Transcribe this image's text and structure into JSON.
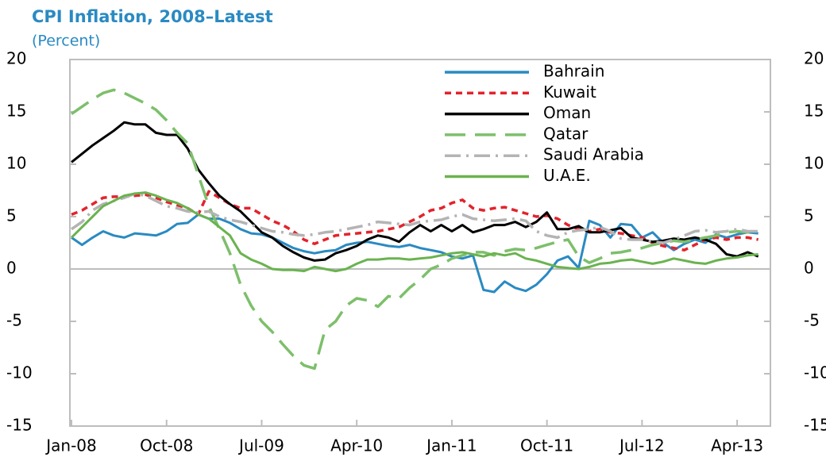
{
  "chart_data": {
    "type": "line",
    "title": "CPI Inflation, 2008–Latest",
    "subtitle": "(Percent)",
    "categories": [
      "Jan-08",
      null,
      null,
      null,
      null,
      null,
      null,
      null,
      null,
      "Oct-08",
      null,
      null,
      null,
      null,
      null,
      null,
      null,
      null,
      "Jul-09",
      null,
      null,
      null,
      null,
      null,
      null,
      null,
      null,
      "Apr-10",
      null,
      null,
      null,
      null,
      null,
      null,
      null,
      null,
      "Jan-11",
      null,
      null,
      null,
      null,
      null,
      null,
      null,
      null,
      "Oct-11",
      null,
      null,
      null,
      null,
      null,
      null,
      null,
      null,
      "Jul-12",
      null,
      null,
      null,
      null,
      null,
      null,
      null,
      null,
      "Apr-13",
      null,
      null
    ],
    "ylim": [
      -15,
      20
    ],
    "yticks": [
      -15,
      -10,
      -5,
      0,
      5,
      10,
      15,
      20
    ],
    "y2lim": [
      -15,
      20
    ],
    "y2ticks": [
      -15,
      -10,
      -5,
      0,
      5,
      10,
      15,
      20
    ],
    "grid": false,
    "legend": "top-right",
    "series": [
      {
        "name": "Bahrain",
        "color": "#2a8ac2",
        "dash": "solid",
        "values": [
          3.0,
          2.3,
          3.0,
          3.6,
          3.2,
          3.0,
          3.4,
          3.3,
          3.2,
          3.6,
          4.3,
          4.4,
          5.2,
          4.8,
          4.8,
          4.4,
          3.8,
          3.4,
          3.3,
          3.0,
          2.5,
          2.0,
          1.7,
          1.5,
          1.7,
          1.8,
          2.3,
          2.5,
          2.6,
          2.4,
          2.2,
          2.1,
          2.3,
          2.0,
          1.8,
          1.6,
          1.2,
          1.0,
          1.3,
          -2.0,
          -2.2,
          -1.2,
          -1.8,
          -2.1,
          -1.5,
          -0.5,
          0.8,
          1.2,
          0.1,
          4.6,
          4.2,
          3.0,
          4.3,
          4.2,
          3.0,
          3.5,
          2.5,
          1.8,
          2.4,
          2.8,
          2.5,
          3.3,
          3.0,
          3.3,
          3.5,
          3.4
        ]
      },
      {
        "name": "Kuwait",
        "color": "#e3232c",
        "dash": "dashed",
        "values": [
          5.2,
          5.6,
          6.2,
          6.8,
          6.9,
          6.9,
          7.0,
          7.1,
          6.8,
          6.4,
          6.1,
          5.8,
          5.2,
          7.4,
          6.8,
          6.2,
          5.8,
          5.8,
          5.2,
          4.6,
          4.2,
          3.6,
          2.8,
          2.4,
          2.8,
          3.2,
          3.3,
          3.4,
          3.5,
          3.6,
          3.8,
          4.0,
          4.5,
          5.0,
          5.6,
          5.8,
          6.3,
          6.6,
          5.8,
          5.6,
          5.8,
          5.9,
          5.6,
          5.3,
          5.0,
          5.1,
          4.8,
          4.2,
          3.8,
          3.6,
          3.8,
          3.5,
          3.4,
          3.2,
          3.0,
          2.5,
          2.2,
          2.0,
          1.8,
          2.3,
          2.8,
          3.0,
          2.8,
          3.0,
          3.0,
          2.8
        ]
      },
      {
        "name": "Oman",
        "color": "#000000",
        "dash": "solid",
        "values": [
          10.2,
          11.0,
          11.8,
          12.5,
          13.2,
          14.0,
          13.8,
          13.8,
          13.0,
          12.8,
          12.8,
          11.5,
          9.5,
          8.2,
          7.0,
          6.2,
          5.5,
          4.5,
          3.5,
          3.0,
          2.2,
          1.6,
          1.1,
          0.8,
          0.9,
          1.5,
          1.8,
          2.2,
          2.8,
          3.2,
          3.0,
          2.6,
          3.5,
          4.2,
          3.6,
          4.2,
          3.6,
          4.2,
          3.5,
          3.8,
          4.2,
          4.2,
          4.5,
          4.0,
          4.5,
          5.4,
          3.8,
          3.8,
          4.1,
          3.5,
          3.5,
          3.7,
          3.9,
          3.0,
          2.8,
          2.6,
          2.7,
          2.9,
          2.8,
          3.0,
          2.8,
          2.4,
          1.4,
          1.2,
          1.6,
          1.2
        ]
      },
      {
        "name": "Qatar",
        "color": "#7dbf6b",
        "dash": "long-dash",
        "values": [
          14.8,
          15.5,
          16.2,
          16.8,
          17.1,
          16.8,
          16.3,
          15.8,
          15.2,
          14.2,
          13.0,
          12.0,
          9.0,
          6.0,
          3.8,
          1.5,
          -1.5,
          -3.5,
          -5.0,
          -6.0,
          -7.2,
          -8.3,
          -9.2,
          -9.5,
          -5.8,
          -5.0,
          -3.5,
          -2.8,
          -3.0,
          -3.6,
          -2.6,
          -2.8,
          -1.8,
          -1.0,
          0.0,
          0.4,
          1.0,
          1.3,
          1.6,
          1.6,
          1.3,
          1.7,
          1.9,
          1.8,
          2.0,
          2.3,
          2.6,
          2.8,
          1.2,
          0.6,
          1.0,
          1.5,
          1.6,
          1.8,
          2.0,
          2.3,
          2.5,
          2.7,
          2.6,
          2.8,
          3.0,
          3.2,
          3.5,
          3.6,
          3.5,
          3.4
        ]
      },
      {
        "name": "Saudi Arabia",
        "color": "#b4b4b4",
        "dash": "dash-dot",
        "values": [
          3.8,
          4.5,
          5.6,
          6.2,
          6.5,
          6.8,
          7.2,
          7.0,
          6.5,
          6.0,
          5.8,
          5.5,
          5.4,
          5.5,
          5.0,
          4.7,
          4.5,
          4.2,
          3.9,
          3.6,
          3.5,
          3.3,
          3.2,
          3.3,
          3.5,
          3.6,
          3.8,
          4.0,
          4.2,
          4.5,
          4.4,
          4.3,
          4.2,
          4.5,
          4.6,
          4.7,
          5.0,
          5.2,
          4.8,
          4.7,
          4.6,
          4.7,
          4.8,
          4.6,
          3.6,
          3.2,
          3.0,
          3.5,
          3.7,
          3.8,
          4.0,
          3.6,
          2.9,
          2.8,
          2.8,
          2.6,
          2.5,
          2.8,
          3.2,
          3.6,
          3.7,
          3.5,
          3.6,
          3.8,
          3.6,
          3.6
        ]
      },
      {
        "name": "U.A.E.",
        "color": "#6ab34f",
        "dash": "solid",
        "values": [
          3.0,
          4.0,
          5.0,
          6.0,
          6.5,
          7.0,
          7.2,
          7.3,
          7.0,
          6.6,
          6.3,
          5.8,
          5.2,
          4.8,
          4.0,
          3.2,
          1.5,
          0.9,
          0.5,
          0.0,
          -0.1,
          -0.1,
          -0.2,
          0.2,
          0.0,
          -0.2,
          0.0,
          0.5,
          0.9,
          0.9,
          1.0,
          1.0,
          0.9,
          1.0,
          1.1,
          1.3,
          1.5,
          1.6,
          1.4,
          1.2,
          1.5,
          1.3,
          1.5,
          1.0,
          0.8,
          0.5,
          0.2,
          0.1,
          0.0,
          0.2,
          0.5,
          0.6,
          0.8,
          0.9,
          0.7,
          0.5,
          0.7,
          1.0,
          0.8,
          0.6,
          0.5,
          0.8,
          1.0,
          1.1,
          1.3,
          1.4
        ]
      }
    ]
  }
}
